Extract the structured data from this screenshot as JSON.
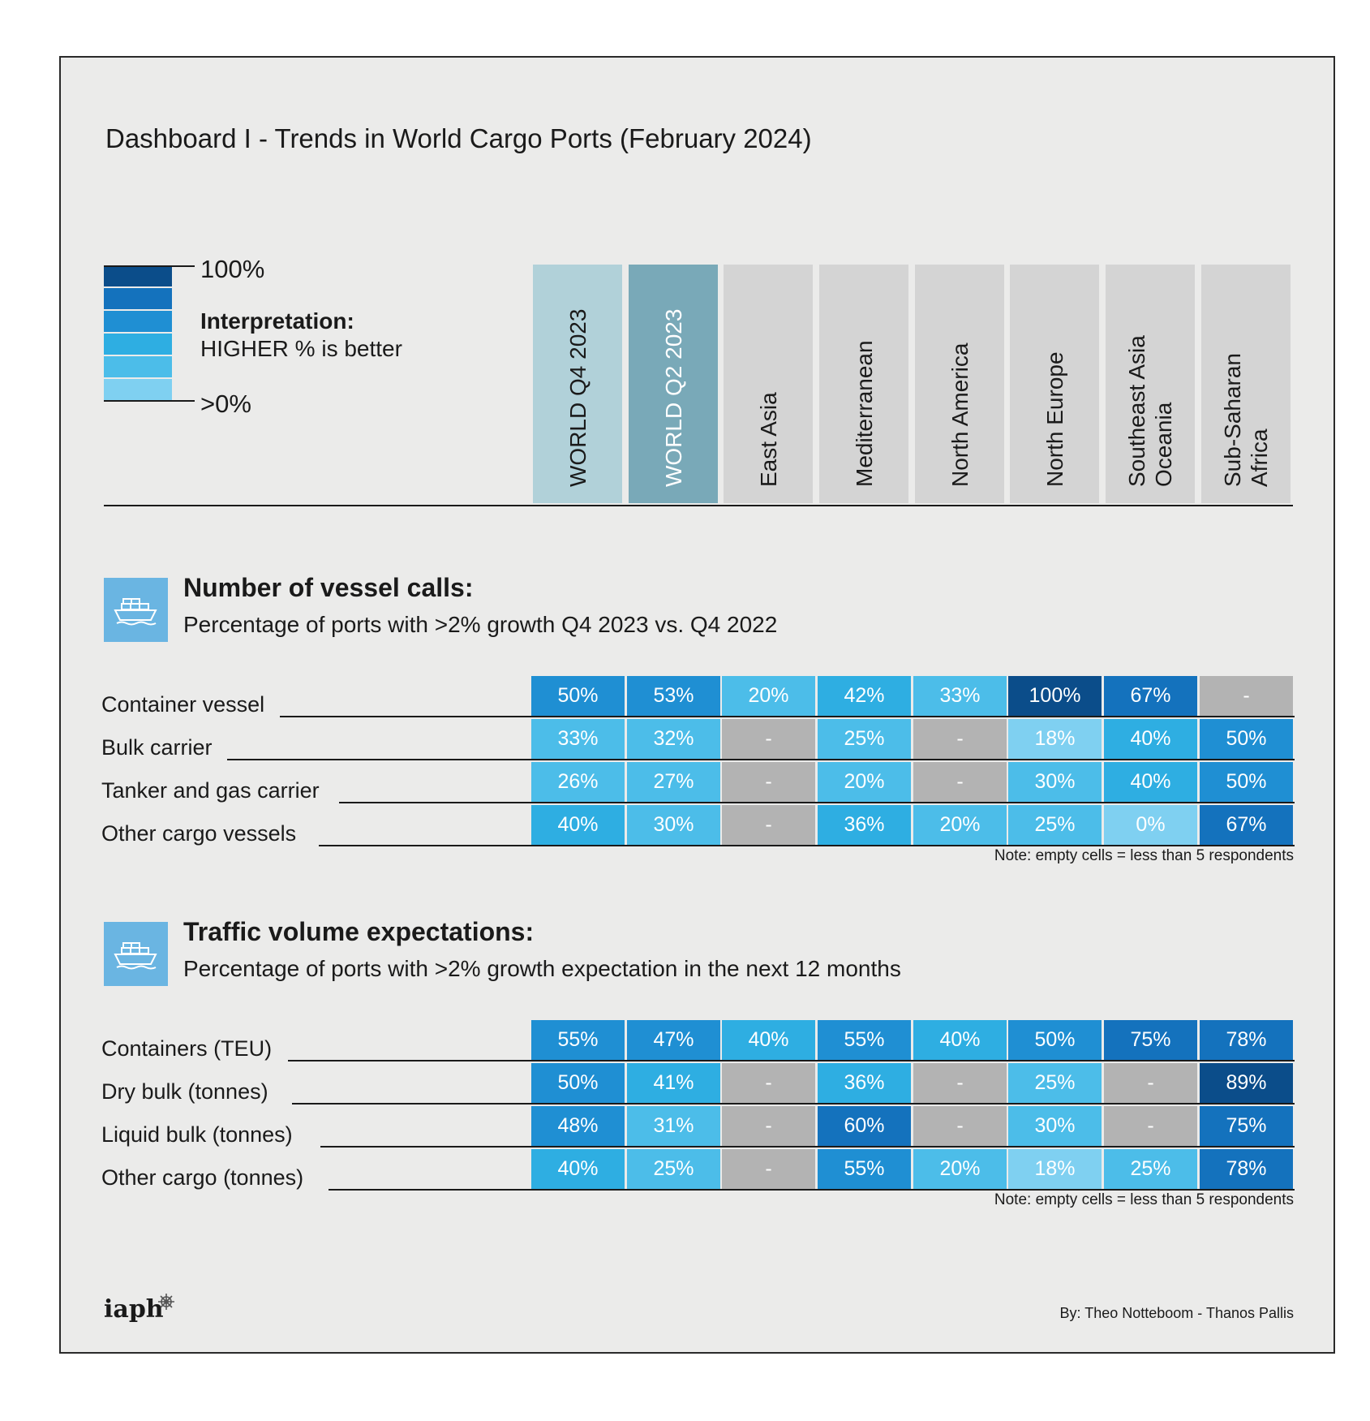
{
  "title": "Dashboard I - Trends in World Cargo Ports (February 2024)",
  "legend": {
    "max_label": "100%",
    "min_label": ">0%",
    "interpretation_title": "Interpretation:",
    "interpretation_text": "HIGHER % is better",
    "scale_colors": [
      "#0b4d8a",
      "#1472bd",
      "#1f8fd3",
      "#2eaee2",
      "#4cbde9",
      "#7fd0f1"
    ]
  },
  "columns": [
    "WORLD  Q4 2023",
    "WORLD  Q2 2023",
    "East Asia",
    "Mediterranean",
    "North America",
    "North Europe",
    "Southeast Asia\nOceania",
    "Sub-Saharan\nAfrica"
  ],
  "colors": {
    "empty_cell": "#b3b3b3",
    "header_gray": "#d4d4d4",
    "header_world_q4": "#b1d1d9",
    "header_world_q2": "#79a9b8",
    "icon_blue": "#6ab5e2"
  },
  "vessel_calls": {
    "icon": "container-ship-icon",
    "title": "Number of vessel calls:",
    "subtitle": "Percentage of ports with >2% growth Q4 2023 vs. Q4 2022",
    "note": "Note: empty cells = less than 5 respondents",
    "rows": [
      {
        "label": "Container vessel",
        "values": [
          "50%",
          "53%",
          "20%",
          "42%",
          "33%",
          "100%",
          "67%",
          "-"
        ]
      },
      {
        "label": "Bulk carrier",
        "values": [
          "33%",
          "32%",
          "-",
          "25%",
          "-",
          "18%",
          "40%",
          "50%"
        ]
      },
      {
        "label": "Tanker and gas carrier",
        "values": [
          "26%",
          "27%",
          "-",
          "20%",
          "-",
          "30%",
          "40%",
          "50%"
        ]
      },
      {
        "label": "Other cargo vessels",
        "values": [
          "40%",
          "30%",
          "-",
          "36%",
          "20%",
          "25%",
          "0%",
          "67%"
        ]
      }
    ]
  },
  "traffic_expectations": {
    "icon": "container-ship-icon",
    "title": "Traffic volume expectations:",
    "subtitle": "Percentage of ports with >2% growth expectation in the next 12 months",
    "note": "Note: empty cells = less than 5 respondents",
    "rows": [
      {
        "label": "Containers (TEU)",
        "values": [
          "55%",
          "47%",
          "40%",
          "55%",
          "40%",
          "50%",
          "75%",
          "78%"
        ]
      },
      {
        "label": "Dry bulk (tonnes)",
        "values": [
          "50%",
          "41%",
          "-",
          "36%",
          "-",
          "25%",
          "-",
          "89%"
        ]
      },
      {
        "label": "Liquid bulk (tonnes)",
        "values": [
          "48%",
          "31%",
          "-",
          "60%",
          "-",
          "30%",
          "-",
          "75%"
        ]
      },
      {
        "label": "Other cargo (tonnes)",
        "values": [
          "40%",
          "25%",
          "-",
          "55%",
          "20%",
          "18%",
          "25%",
          "78%"
        ]
      }
    ]
  },
  "chart_data": [
    {
      "type": "table",
      "title": "Number of vessel calls: Percentage of ports with >2% growth Q4 2023 vs. Q4 2022",
      "columns": [
        "WORLD Q4 2023",
        "WORLD Q2 2023",
        "East Asia",
        "Mediterranean",
        "North America",
        "North Europe",
        "Southeast Asia Oceania",
        "Sub-Saharan Africa"
      ],
      "rows": [
        "Container vessel",
        "Bulk carrier",
        "Tanker and gas carrier",
        "Other cargo vessels"
      ],
      "values": [
        [
          50,
          53,
          20,
          42,
          33,
          100,
          67,
          null
        ],
        [
          33,
          32,
          null,
          25,
          null,
          18,
          40,
          50
        ],
        [
          26,
          27,
          null,
          20,
          null,
          30,
          40,
          50
        ],
        [
          40,
          30,
          null,
          36,
          20,
          25,
          0,
          67
        ]
      ],
      "unit": "%"
    },
    {
      "type": "table",
      "title": "Traffic volume expectations: Percentage of ports with >2% growth expectation in the next 12 months",
      "columns": [
        "WORLD Q4 2023",
        "WORLD Q2 2023",
        "East Asia",
        "Mediterranean",
        "North America",
        "North Europe",
        "Southeast Asia Oceania",
        "Sub-Saharan Africa"
      ],
      "rows": [
        "Containers (TEU)",
        "Dry bulk (tonnes)",
        "Liquid bulk (tonnes)",
        "Other cargo (tonnes)"
      ],
      "values": [
        [
          55,
          47,
          40,
          55,
          40,
          50,
          75,
          78
        ],
        [
          50,
          41,
          null,
          36,
          null,
          25,
          null,
          89
        ],
        [
          48,
          31,
          null,
          60,
          null,
          30,
          null,
          75
        ],
        [
          40,
          25,
          null,
          55,
          20,
          18,
          25,
          78
        ]
      ],
      "unit": "%"
    }
  ],
  "footer": {
    "logo_text": "iaph",
    "byline": "By: Theo Notteboom - Thanos Pallis"
  }
}
